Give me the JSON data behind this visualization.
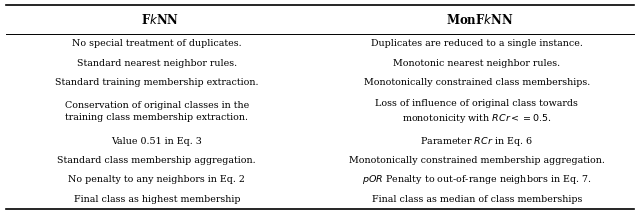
{
  "col1_header": "F$k$NN",
  "col2_header": "MonF$k$NN",
  "col1_rows": [
    "No special treatment of duplicates.",
    "Standard nearest neighbor rules.",
    "Standard training membership extraction.",
    "Conservation of original classes in the\ntraining class membership extraction.",
    "Value 0.51 in Eq. 3",
    "Standard class membership aggregation.",
    "No penalty to any neighbors in Eq. 2",
    "Final class as highest membership"
  ],
  "col2_rows": [
    "Duplicates are reduced to a single instance.",
    "Monotonic nearest neighbor rules.",
    "Monotonically constrained class memberships.",
    "Loss of influence of original class towards\nmonotonicity with $RCr<=0.5$.",
    "Parameter $RCr$ in Eq. 6",
    "Monotonically constrained membership aggregation.",
    "$pOR$ Penalty to out-of-range neighbors in Eq. 7.",
    "Final class as median of class memberships"
  ],
  "bg_color": "#ffffff",
  "text_color": "#000000",
  "line_color": "#000000",
  "font_size": 6.8,
  "header_font_size": 8.5,
  "fig_width": 6.4,
  "fig_height": 2.19,
  "dpi": 100
}
